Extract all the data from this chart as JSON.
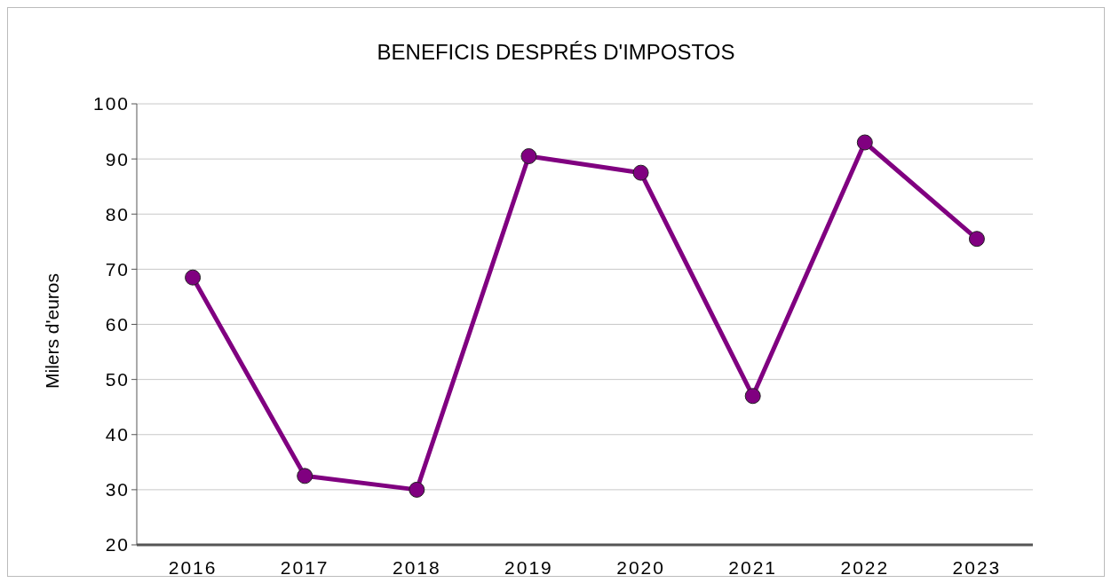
{
  "chart_data": {
    "type": "line",
    "title": "BENEFICIS DESPRÉS D'IMPOSTOS",
    "ylabel": "Milers d'euros",
    "categories": [
      "2016",
      "2017",
      "2018",
      "2019",
      "2020",
      "2021",
      "2022",
      "2023"
    ],
    "series": [
      {
        "color": "#800080",
        "values": [
          68.5,
          32.5,
          30,
          90.5,
          87.5,
          47,
          93,
          75.5
        ]
      }
    ],
    "ylim": [
      20,
      100
    ],
    "yticks": [
      20,
      30,
      40,
      50,
      60,
      70,
      80,
      90,
      100
    ],
    "grid": "y",
    "marker": "circle",
    "line_style": "solid"
  }
}
